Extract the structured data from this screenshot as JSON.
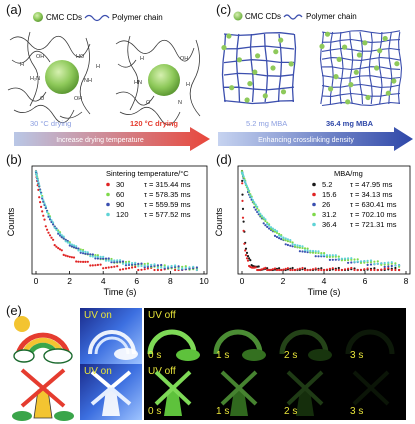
{
  "panel_a": {
    "label": "(a)",
    "legend_cd": "CMC CDs",
    "legend_chain": "Polymer chain",
    "temp_low": "30 °C drying",
    "temp_high": "120 °C drying",
    "arrow_text": "Increase drying temperature",
    "colors": {
      "arrow_start": "#b9c7e6",
      "arrow_end": "#e8473b",
      "sphere": "#8ec95a"
    }
  },
  "panel_c": {
    "label": "(c)",
    "legend_cd": "CMC CDs",
    "legend_chain": "Polymer chain",
    "mba_low": "5.2 mg MBA",
    "mba_high": "36.4 mg MBA",
    "arrow_text": "Enhancing crosslinking density",
    "colors": {
      "arrow_start": "#c6d3f0",
      "arrow_end": "#2e47a8",
      "net": "#3c4fae"
    }
  },
  "panel_b": {
    "label": "(b)",
    "ylabel": "Counts",
    "xlabel": "Time (s)",
    "legend_title": "Sintering temperature/°C",
    "xticks": [
      "0",
      "2",
      "4",
      "6",
      "8",
      "10"
    ],
    "entries": [
      {
        "name": "30",
        "tau": "τ = 315.44 ms"
      },
      {
        "name": "60",
        "tau": "τ = 578.35 ms"
      },
      {
        "name": "90",
        "tau": "τ = 559.59 ms"
      },
      {
        "name": "120",
        "tau": "τ = 577.52 ms"
      }
    ]
  },
  "panel_d": {
    "label": "(d)",
    "ylabel": "Counts",
    "xlabel": "Time (s)",
    "legend_title": "MBA/mg",
    "xticks": [
      "0",
      "2",
      "4",
      "6",
      "8"
    ],
    "entries": [
      {
        "name": "5.2",
        "tau": "τ = 47.95 ms"
      },
      {
        "name": "15.6",
        "tau": "τ = 34.13 ms"
      },
      {
        "name": "26",
        "tau": "τ = 630.41 ms"
      },
      {
        "name": "31.2",
        "tau": "τ = 702.10 ms"
      },
      {
        "name": "36.4",
        "tau": "τ = 721.31 ms"
      }
    ]
  },
  "panel_e": {
    "label": "(e)",
    "uv_on": "UV on",
    "uv_off": "UV off",
    "times": [
      "0 s",
      "1 s",
      "2 s",
      "3 s"
    ]
  },
  "chart_data": [
    {
      "type": "scatter",
      "title": "",
      "xlabel": "Time (s)",
      "ylabel": "Counts",
      "xlim": [
        0,
        10
      ],
      "legend_title": "Sintering temperature/°C",
      "legend_position": "top-right",
      "series": [
        {
          "name": "30",
          "color": "#e02424",
          "tau_ms": 315.44
        },
        {
          "name": "60",
          "color": "#7fd94a",
          "tau_ms": 578.35
        },
        {
          "name": "90",
          "color": "#3a4fb0",
          "tau_ms": 559.59
        },
        {
          "name": "120",
          "color": "#5fd3d6",
          "tau_ms": 577.52
        }
      ]
    },
    {
      "type": "scatter",
      "title": "",
      "xlabel": "Time (s)",
      "ylabel": "Counts",
      "xlim": [
        0,
        8
      ],
      "legend_title": "MBA/mg",
      "legend_position": "top-right",
      "series": [
        {
          "name": "5.2",
          "color": "#1a1a1a",
          "tau_ms": 47.95
        },
        {
          "name": "15.6",
          "color": "#e02424",
          "tau_ms": 34.13
        },
        {
          "name": "26",
          "color": "#3a4fb0",
          "tau_ms": 630.41
        },
        {
          "name": "31.2",
          "color": "#7fd94a",
          "tau_ms": 702.1
        },
        {
          "name": "36.4",
          "color": "#5fd3d6",
          "tau_ms": 721.31
        }
      ]
    }
  ]
}
